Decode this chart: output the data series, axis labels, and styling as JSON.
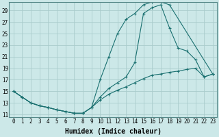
{
  "xlabel": "Humidex (Indice chaleur)",
  "bg_color": "#cce8e8",
  "grid_color": "#aacccc",
  "line_color": "#1a7070",
  "lines": [
    {
      "x": [
        0,
        1,
        2,
        3,
        4,
        5,
        6,
        7,
        8,
        9,
        10,
        11,
        12,
        13,
        14,
        15,
        16,
        17,
        18,
        19,
        20,
        21,
        22,
        23
      ],
      "y": [
        15.0,
        14.0,
        13.0,
        12.5,
        12.2,
        11.8,
        11.5,
        11.2,
        11.2,
        12.2,
        14.0,
        15.5,
        16.5,
        17.5,
        20.0,
        28.5,
        29.5,
        30.0,
        26.0,
        22.5,
        22.0,
        20.5,
        17.5,
        18.0
      ]
    },
    {
      "x": [
        0,
        1,
        2,
        3,
        4,
        5,
        6,
        7,
        8,
        9,
        10,
        11,
        12,
        13,
        14,
        15,
        16,
        17,
        18,
        23
      ],
      "y": [
        15.0,
        14.0,
        13.0,
        12.5,
        12.2,
        11.8,
        11.5,
        11.2,
        11.2,
        12.2,
        17.0,
        21.0,
        25.0,
        27.5,
        28.5,
        30.0,
        30.5,
        30.5,
        30.0,
        18.0
      ]
    },
    {
      "x": [
        0,
        1,
        2,
        3,
        4,
        5,
        6,
        7,
        8,
        9,
        10,
        11,
        12,
        13,
        14,
        15,
        16,
        17,
        18,
        19,
        20,
        21,
        22,
        23
      ],
      "y": [
        15.0,
        14.0,
        13.0,
        12.5,
        12.2,
        11.8,
        11.5,
        11.2,
        11.2,
        12.2,
        13.5,
        14.5,
        15.2,
        15.8,
        16.5,
        17.2,
        17.8,
        18.0,
        18.3,
        18.5,
        18.8,
        19.0,
        17.5,
        18.0
      ]
    }
  ],
  "ylim": [
    10.5,
    30.5
  ],
  "xlim": [
    -0.5,
    23.5
  ],
  "yticks": [
    11,
    13,
    15,
    17,
    19,
    21,
    23,
    25,
    27,
    29
  ],
  "xticks": [
    0,
    1,
    2,
    3,
    4,
    5,
    6,
    7,
    8,
    9,
    10,
    11,
    12,
    13,
    14,
    15,
    16,
    17,
    18,
    19,
    20,
    21,
    22,
    23
  ],
  "tick_fontsize": 5.5,
  "xlabel_fontsize": 7
}
